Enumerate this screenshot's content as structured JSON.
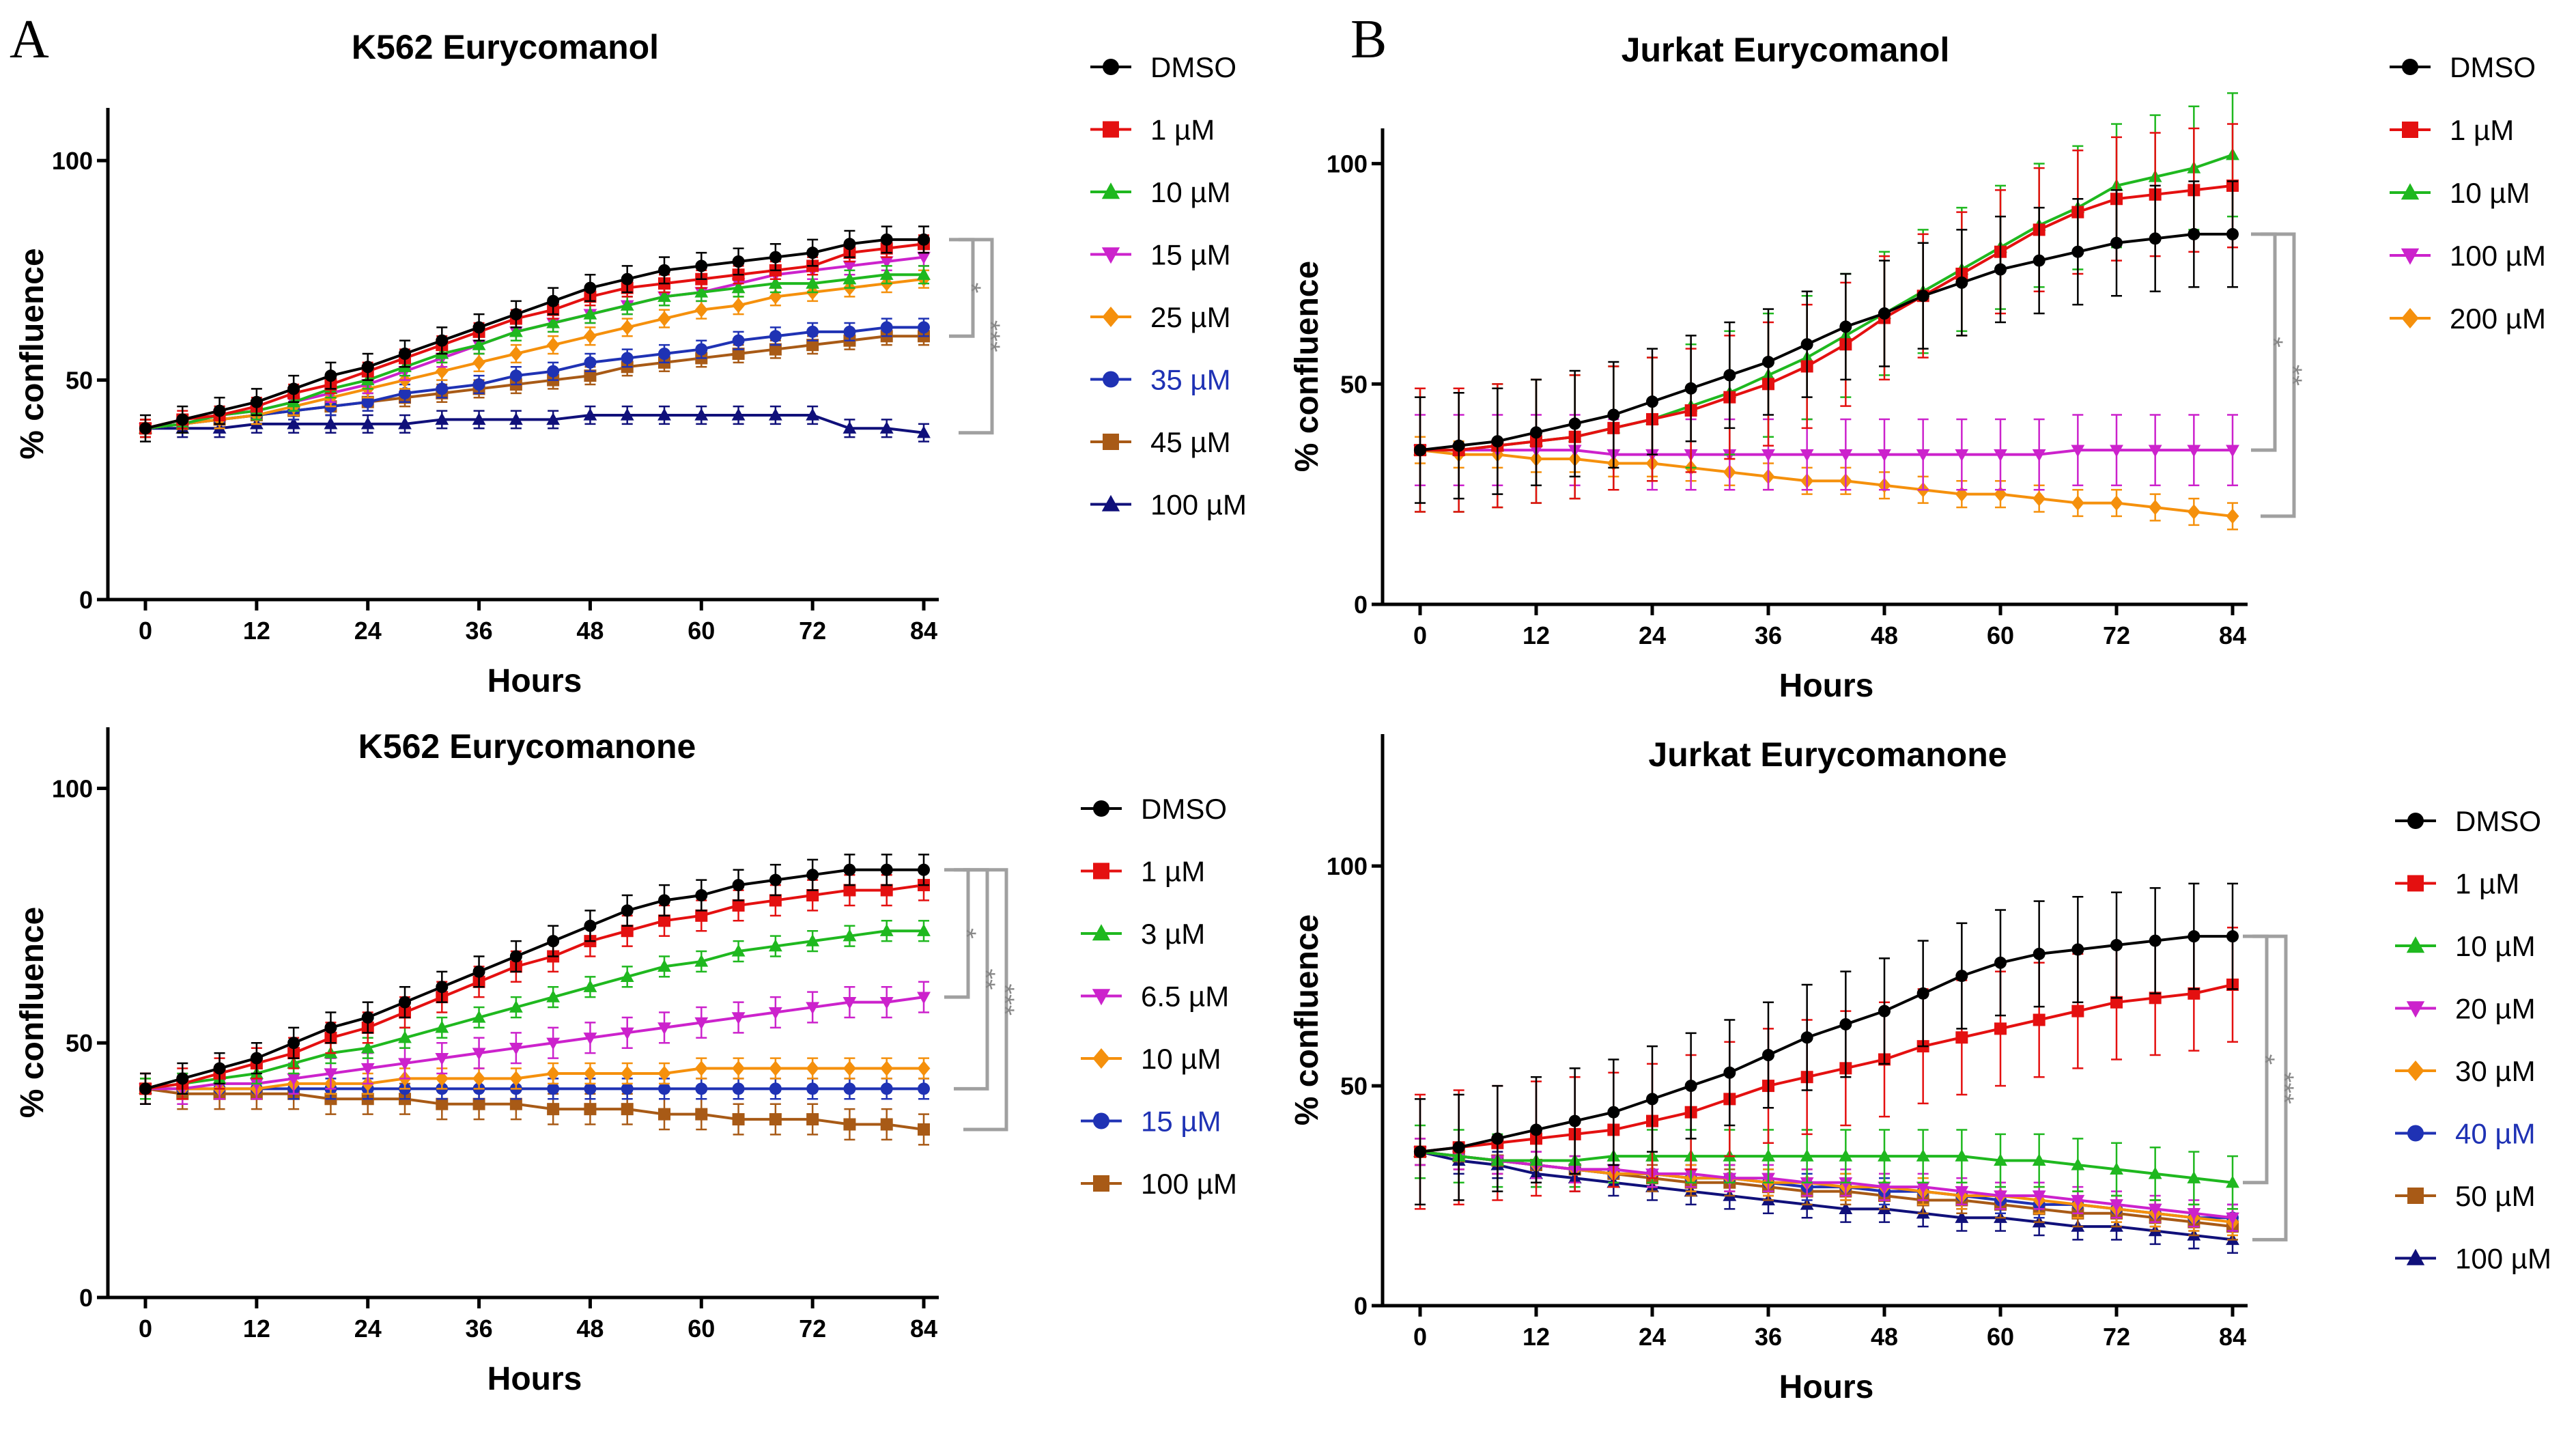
{
  "figure": {
    "panel_labels": [
      "A",
      "B"
    ]
  },
  "chart_data": [
    {
      "type": "line",
      "title": "K562 Eurycomanol",
      "xlabel": "Hours",
      "ylabel": "% confluence",
      "xlim": [
        0,
        84
      ],
      "ylim": [
        0,
        112
      ],
      "xticks": [
        0,
        12,
        24,
        36,
        48,
        60,
        72,
        84
      ],
      "yticks": [
        0,
        50,
        100
      ],
      "x": [
        0,
        4,
        8,
        12,
        16,
        20,
        24,
        28,
        32,
        36,
        40,
        44,
        48,
        52,
        56,
        60,
        64,
        68,
        72,
        76,
        80,
        84
      ],
      "series": [
        {
          "name": "DMSO",
          "color": "#000000",
          "marker": "circle",
          "label_color": "#000000",
          "err": 3,
          "values": [
            39,
            41,
            43,
            45,
            48,
            51,
            53,
            56,
            59,
            62,
            65,
            68,
            71,
            73,
            75,
            76,
            77,
            78,
            79,
            81,
            82,
            82
          ]
        },
        {
          "name": "1 µM",
          "color": "#e41010",
          "marker": "square",
          "label_color": "#000000",
          "err": 2,
          "values": [
            39,
            41,
            42,
            44,
            47,
            49,
            52,
            55,
            58,
            61,
            64,
            66,
            69,
            71,
            72,
            73,
            74,
            75,
            76,
            79,
            80,
            81
          ]
        },
        {
          "name": "10 µM",
          "color": "#1fb81f",
          "marker": "triangle",
          "label_color": "#000000",
          "err": 2,
          "values": [
            39,
            40,
            42,
            43,
            45,
            48,
            50,
            53,
            56,
            58,
            61,
            63,
            65,
            67,
            69,
            70,
            71,
            72,
            72,
            73,
            74,
            74
          ]
        },
        {
          "name": "15 µM",
          "color": "#cc22cc",
          "marker": "triangle-down",
          "label_color": "#000000",
          "err": 2,
          "values": [
            39,
            40,
            42,
            43,
            45,
            47,
            49,
            52,
            55,
            58,
            61,
            63,
            65,
            67,
            69,
            70,
            72,
            74,
            75,
            76,
            77,
            78
          ]
        },
        {
          "name": "25 µM",
          "color": "#f5900c",
          "marker": "diamond",
          "label_color": "#000000",
          "err": 2,
          "values": [
            39,
            40,
            41,
            42,
            44,
            46,
            48,
            50,
            52,
            54,
            56,
            58,
            60,
            62,
            64,
            66,
            67,
            69,
            70,
            71,
            72,
            73
          ]
        },
        {
          "name": "35 µM",
          "color": "#1f32b4",
          "marker": "circle",
          "label_color": "#1f32b4",
          "err": 2,
          "values": [
            39,
            40,
            41,
            42,
            43,
            44,
            45,
            47,
            48,
            49,
            51,
            52,
            54,
            55,
            56,
            57,
            59,
            60,
            61,
            61,
            62,
            62
          ]
        },
        {
          "name": "45 µM",
          "color": "#a85a16",
          "marker": "square",
          "label_color": "#000000",
          "err": 2,
          "values": [
            39,
            40,
            41,
            42,
            43,
            44,
            45,
            46,
            47,
            48,
            49,
            50,
            51,
            53,
            54,
            55,
            56,
            57,
            58,
            59,
            60,
            60
          ]
        },
        {
          "name": "100 µM",
          "color": "#10107a",
          "marker": "triangle",
          "label_color": "#000000",
          "err": 2,
          "values": [
            39,
            39,
            39,
            40,
            40,
            40,
            40,
            40,
            41,
            41,
            41,
            41,
            42,
            42,
            42,
            42,
            42,
            42,
            42,
            39,
            39,
            38
          ]
        }
      ],
      "significance": [
        {
          "label": "*",
          "from": "DMSO",
          "to": "45 µM"
        },
        {
          "label": "***",
          "from": "DMSO",
          "to": "100 µM"
        }
      ]
    },
    {
      "type": "line",
      "title": "K562 Eurycomanone",
      "xlabel": "Hours",
      "ylabel": "% confluence",
      "xlim": [
        0,
        84
      ],
      "ylim": [
        0,
        112
      ],
      "xticks": [
        0,
        12,
        24,
        36,
        48,
        60,
        72,
        84
      ],
      "yticks": [
        0,
        50,
        100
      ],
      "x": [
        0,
        4,
        8,
        12,
        16,
        20,
        24,
        28,
        32,
        36,
        40,
        44,
        48,
        52,
        56,
        60,
        64,
        68,
        72,
        76,
        80,
        84
      ],
      "series": [
        {
          "name": "DMSO",
          "color": "#000000",
          "marker": "circle",
          "label_color": "#000000",
          "err": 3,
          "values": [
            41,
            43,
            45,
            47,
            50,
            53,
            55,
            58,
            61,
            64,
            67,
            70,
            73,
            76,
            78,
            79,
            81,
            82,
            83,
            84,
            84,
            84
          ]
        },
        {
          "name": "1 µM",
          "color": "#e41010",
          "marker": "square",
          "label_color": "#000000",
          "err": 3,
          "values": [
            41,
            42,
            44,
            46,
            48,
            51,
            53,
            56,
            59,
            62,
            65,
            67,
            70,
            72,
            74,
            75,
            77,
            78,
            79,
            80,
            80,
            81
          ]
        },
        {
          "name": "3 µM",
          "color": "#1fb81f",
          "marker": "triangle",
          "label_color": "#000000",
          "err": 2,
          "values": [
            41,
            42,
            43,
            44,
            46,
            48,
            49,
            51,
            53,
            55,
            57,
            59,
            61,
            63,
            65,
            66,
            68,
            69,
            70,
            71,
            72,
            72
          ]
        },
        {
          "name": "6.5 µM",
          "color": "#cc22cc",
          "marker": "triangle-down",
          "label_color": "#000000",
          "err": 3,
          "values": [
            41,
            41,
            42,
            42,
            43,
            44,
            45,
            46,
            47,
            48,
            49,
            50,
            51,
            52,
            53,
            54,
            55,
            56,
            57,
            58,
            58,
            59
          ]
        },
        {
          "name": "10 µM",
          "color": "#f5900c",
          "marker": "diamond",
          "label_color": "#000000",
          "err": 2,
          "values": [
            41,
            41,
            41,
            41,
            42,
            42,
            42,
            43,
            43,
            43,
            43,
            44,
            44,
            44,
            44,
            45,
            45,
            45,
            45,
            45,
            45,
            45
          ]
        },
        {
          "name": "15 µM",
          "color": "#1f32b4",
          "marker": "circle",
          "label_color": "#1f32b4",
          "err": 2,
          "values": [
            41,
            41,
            41,
            41,
            41,
            41,
            41,
            41,
            41,
            41,
            41,
            41,
            41,
            41,
            41,
            41,
            41,
            41,
            41,
            41,
            41,
            41
          ]
        },
        {
          "name": "100 µM",
          "color": "#a85a16",
          "marker": "square",
          "label_color": "#000000",
          "err": 3,
          "values": [
            41,
            40,
            40,
            40,
            40,
            39,
            39,
            39,
            38,
            38,
            38,
            37,
            37,
            37,
            36,
            36,
            35,
            35,
            35,
            34,
            34,
            33
          ]
        }
      ],
      "significance": [
        {
          "label": "*",
          "from": "DMSO",
          "to": "6.5 µM"
        },
        {
          "label": "**",
          "from": "DMSO",
          "to": "15 µM"
        },
        {
          "label": "***",
          "from": "DMSO",
          "to": "100 µM"
        }
      ]
    },
    {
      "type": "line",
      "title": "Jurkat Eurycomanol",
      "xlabel": "Hours",
      "ylabel": "% confluence",
      "xlim": [
        0,
        84
      ],
      "ylim": [
        0,
        108
      ],
      "xticks": [
        0,
        12,
        24,
        36,
        48,
        60,
        72,
        84
      ],
      "yticks": [
        0,
        50,
        100
      ],
      "x": [
        0,
        4,
        8,
        12,
        16,
        20,
        24,
        28,
        32,
        36,
        40,
        44,
        48,
        52,
        56,
        60,
        64,
        68,
        72,
        76,
        80,
        84
      ],
      "series": [
        {
          "name": "DMSO",
          "color": "#000000",
          "marker": "circle",
          "label_color": "#000000",
          "err": 12,
          "values": [
            35,
            36,
            37,
            39,
            41,
            43,
            46,
            49,
            52,
            55,
            59,
            63,
            66,
            70,
            73,
            76,
            78,
            80,
            82,
            83,
            84,
            84
          ]
        },
        {
          "name": "1 µM",
          "color": "#e41010",
          "marker": "square",
          "label_color": "#000000",
          "err": 14,
          "values": [
            35,
            35,
            36,
            37,
            38,
            40,
            42,
            44,
            47,
            50,
            54,
            59,
            65,
            70,
            75,
            80,
            85,
            89,
            92,
            93,
            94,
            95
          ]
        },
        {
          "name": "10 µM",
          "color": "#1fb81f",
          "marker": "triangle",
          "label_color": "#000000",
          "err": 14,
          "values": [
            35,
            35,
            36,
            37,
            38,
            40,
            42,
            45,
            48,
            52,
            56,
            61,
            66,
            71,
            76,
            81,
            86,
            90,
            95,
            97,
            99,
            102
          ]
        },
        {
          "name": "100 µM",
          "color": "#cc22cc",
          "marker": "triangle-down",
          "label_color": "#000000",
          "err": 8,
          "values": [
            35,
            35,
            35,
            35,
            35,
            34,
            34,
            34,
            34,
            34,
            34,
            34,
            34,
            34,
            34,
            34,
            34,
            35,
            35,
            35,
            35,
            35
          ]
        },
        {
          "name": "200 µM",
          "color": "#f5900c",
          "marker": "diamond",
          "label_color": "#000000",
          "err": 3,
          "values": [
            35,
            34,
            34,
            33,
            33,
            32,
            32,
            31,
            30,
            29,
            28,
            28,
            27,
            26,
            25,
            25,
            24,
            23,
            23,
            22,
            21,
            20
          ]
        }
      ],
      "significance": [
        {
          "label": "*",
          "from": "DMSO",
          "to": "100 µM"
        },
        {
          "label": "**",
          "from": "DMSO",
          "to": "200 µM"
        }
      ]
    },
    {
      "type": "line",
      "title": "Jurkat Eurycomanone",
      "xlabel": "Hours",
      "ylabel": "% confluence",
      "xlim": [
        0,
        84
      ],
      "ylim": [
        0,
        130
      ],
      "xticks": [
        0,
        12,
        24,
        36,
        48,
        60,
        72,
        84
      ],
      "yticks": [
        0,
        50,
        100
      ],
      "x": [
        0,
        4,
        8,
        12,
        16,
        20,
        24,
        28,
        32,
        36,
        40,
        44,
        48,
        52,
        56,
        60,
        64,
        68,
        72,
        76,
        80,
        84
      ],
      "series": [
        {
          "name": "DMSO",
          "color": "#000000",
          "marker": "circle",
          "label_color": "#000000",
          "err": 12,
          "values": [
            35,
            36,
            38,
            40,
            42,
            44,
            47,
            50,
            53,
            57,
            61,
            64,
            67,
            71,
            75,
            78,
            80,
            81,
            82,
            83,
            84,
            84
          ]
        },
        {
          "name": "1 µM",
          "color": "#e41010",
          "marker": "square",
          "label_color": "#000000",
          "err": 13,
          "values": [
            35,
            36,
            37,
            38,
            39,
            40,
            42,
            44,
            47,
            50,
            52,
            54,
            56,
            59,
            61,
            63,
            65,
            67,
            69,
            70,
            71,
            73
          ]
        },
        {
          "name": "10 µM",
          "color": "#1fb81f",
          "marker": "triangle",
          "label_color": "#000000",
          "err": 6,
          "values": [
            35,
            34,
            33,
            33,
            33,
            34,
            34,
            34,
            34,
            34,
            34,
            34,
            34,
            34,
            34,
            33,
            33,
            32,
            31,
            30,
            29,
            28
          ]
        },
        {
          "name": "20 µM",
          "color": "#cc22cc",
          "marker": "triangle-down",
          "label_color": "#000000",
          "err": 3,
          "values": [
            35,
            34,
            33,
            32,
            31,
            31,
            30,
            30,
            29,
            29,
            28,
            28,
            27,
            27,
            26,
            25,
            25,
            24,
            23,
            22,
            21,
            20
          ]
        },
        {
          "name": "30 µM",
          "color": "#f5900c",
          "marker": "diamond",
          "label_color": "#000000",
          "err": 3,
          "values": [
            35,
            34,
            33,
            32,
            31,
            30,
            30,
            29,
            29,
            28,
            28,
            27,
            27,
            26,
            25,
            25,
            24,
            23,
            22,
            21,
            20,
            19
          ]
        },
        {
          "name": "40 µM",
          "color": "#1f32b4",
          "marker": "circle",
          "label_color": "#1f32b4",
          "err": 3,
          "values": [
            35,
            34,
            33,
            32,
            31,
            30,
            30,
            29,
            29,
            28,
            27,
            27,
            26,
            26,
            25,
            24,
            23,
            23,
            22,
            21,
            20,
            20
          ]
        },
        {
          "name": "50 µM",
          "color": "#a85a16",
          "marker": "square",
          "label_color": "#000000",
          "err": 3,
          "values": [
            35,
            34,
            33,
            32,
            31,
            30,
            29,
            28,
            28,
            27,
            26,
            26,
            25,
            24,
            24,
            23,
            22,
            21,
            21,
            20,
            19,
            18
          ]
        },
        {
          "name": "100 µM",
          "color": "#10107a",
          "marker": "triangle",
          "label_color": "#000000",
          "err": 3,
          "values": [
            35,
            33,
            32,
            30,
            29,
            28,
            27,
            26,
            25,
            24,
            23,
            22,
            22,
            21,
            20,
            20,
            19,
            18,
            18,
            17,
            16,
            15
          ]
        }
      ],
      "significance": [
        {
          "label": "*",
          "from": "DMSO",
          "to": "10 µM"
        },
        {
          "label": "***",
          "from": "DMSO",
          "to": "100 µM"
        }
      ]
    }
  ]
}
